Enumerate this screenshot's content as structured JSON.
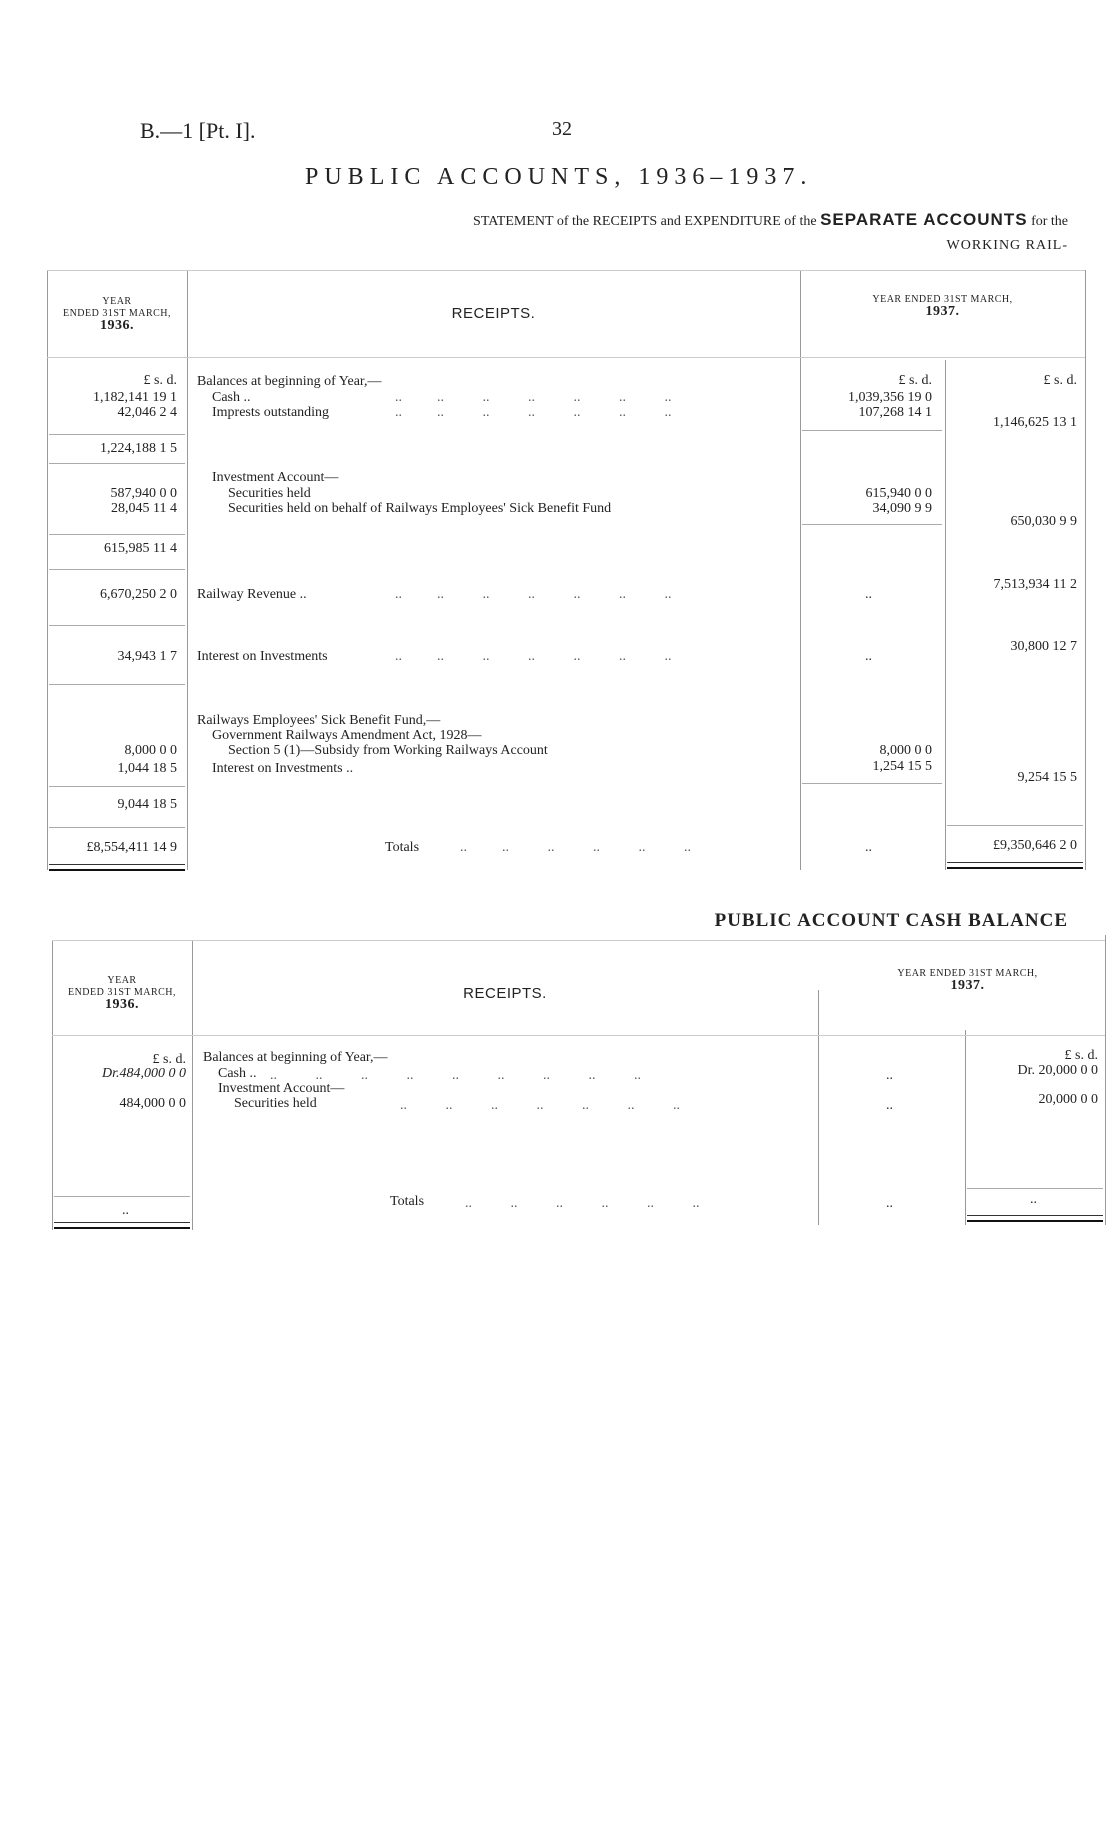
{
  "page": {
    "ref": "B.—1 [Pt. I].",
    "number": "32",
    "title": "PUBLIC ACCOUNTS, 1936–1937."
  },
  "statement": {
    "prefix": "STATEMENT of the RECEIPTS and EXPENDITURE of the",
    "bold": "SEPARATE ACCOUNTS",
    "suffix": "for the",
    "subtitle": "WORKING RAIL-"
  },
  "table1": {
    "head_prev": [
      "YEAR",
      "ENDED 31ST MARCH,",
      "1936."
    ],
    "head_mid": "RECEIPTS.",
    "head_cur": [
      "YEAR ENDED 31ST MARCH,",
      "1937."
    ],
    "currency": "£   s.  d.",
    "rows": [
      {
        "label": "Balances at beginning of Year,—",
        "prev": "",
        "cur1": "",
        "cur2": ""
      },
      {
        "label": "Cash  ..",
        "prev": "1,182,141 19  1",
        "cur1": "1,039,356 19  0",
        "cur2": ""
      },
      {
        "label": "Imprests outstanding",
        "prev": "42,046  2  4",
        "cur1": "107,268 14  1",
        "cur2": "1,146,625 13  1"
      },
      {
        "prev_total": "1,224,188  1  5"
      },
      {
        "label": "Investment Account—"
      },
      {
        "label": "Securities held",
        "prev": "587,940  0  0",
        "cur1": "615,940  0  0"
      },
      {
        "label": "Securities held on behalf of Railways Employees' Sick Benefit Fund",
        "prev": "28,045 11  4",
        "cur1": "34,090  9  9",
        "cur2": "650,030  9  9"
      },
      {
        "prev_total": "615,985 11  4"
      },
      {
        "label": "Railway Revenue ..",
        "prev": "6,670,250  2  0",
        "cur1": "..",
        "cur2": "7,513,934 11  2"
      },
      {
        "label": "Interest on Investments",
        "prev": "34,943  1  7",
        "cur1": "..",
        "cur2": "30,800 12  7"
      },
      {
        "label": "Railways Employees' Sick Benefit Fund,—"
      },
      {
        "label": "Government Railways Amendment Act, 1928—"
      },
      {
        "label": "Section 5 (1)—Subsidy from Working Railways Account",
        "prev": "8,000  0  0",
        "cur1": "8,000  0  0"
      },
      {
        "label": "Interest on Investments ..",
        "prev": "1,044 18  5",
        "cur1": "1,254 15  5",
        "cur2": "9,254 15  5"
      },
      {
        "prev_total": "9,044 18  5"
      },
      {
        "label": "Totals",
        "prev": "£8,554,411 14  9",
        "cur1": "..",
        "cur2": "£9,350,646  2  0"
      }
    ]
  },
  "section2_title": "PUBLIC ACCOUNT CASH BALANCE",
  "table2": {
    "head_prev": [
      "YEAR",
      "ENDED 31ST MARCH,",
      "1936."
    ],
    "head_mid": "RECEIPTS.",
    "head_cur": [
      "YEAR ENDED 31ST MARCH,",
      "1937."
    ],
    "currency": "£   s.  d.",
    "rows": [
      {
        "label": "Balances at beginning of Year,—"
      },
      {
        "label": "Cash  ..",
        "prev": "Dr.484,000  0  0",
        "cur1": "..",
        "cur2": "Dr. 20,000  0  0"
      },
      {
        "label": "Investment Account—"
      },
      {
        "label": "Securities held",
        "prev": "484,000  0  0",
        "cur1": "..",
        "cur2": "20,000  0  0"
      },
      {
        "label": "Totals",
        "prev": "..",
        "cur1": "..",
        "cur2": ".."
      }
    ]
  }
}
